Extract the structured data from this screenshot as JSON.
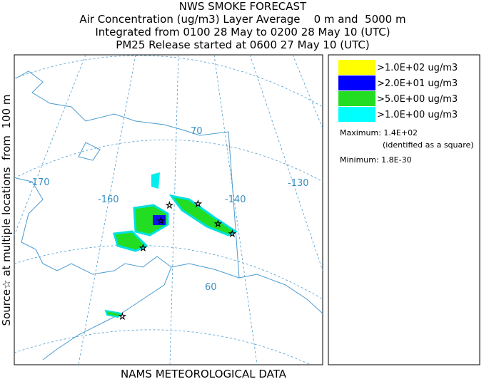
{
  "header": {
    "title": "NWS SMOKE FORECAST",
    "lines": [
      "Air Concentration (ug/m3) Layer Average    0 m and  5000 m",
      "Integrated from 0100 28 May to 0200 28 May 10 (UTC)",
      "PM25 Release started at 0600 27 May 10 (UTC)"
    ]
  },
  "side_label": "Source☆ at multiple locations  from  100 m",
  "footer": "NAMS METEOROLOGICAL DATA",
  "map": {
    "labels": [
      "-170",
      "-160",
      "-140",
      "-130",
      "70",
      "60"
    ]
  },
  "legend": {
    "entries": [
      {
        "label": ">1.0E+02 ug/m3",
        "color": "#ffff00"
      },
      {
        "label": ">2.0E+01 ug/m3",
        "color": "#0000ff"
      },
      {
        "label": ">5.0E+00 ug/m3",
        "color": "#22dd22"
      },
      {
        "label": ">1.0E+00 ug/m3",
        "color": "#00ffff"
      }
    ],
    "maximum": "Maximum: 1.4E+02",
    "maximum_note": "(identified as a square)",
    "minimum": "Minimum: 1.8E-30"
  }
}
